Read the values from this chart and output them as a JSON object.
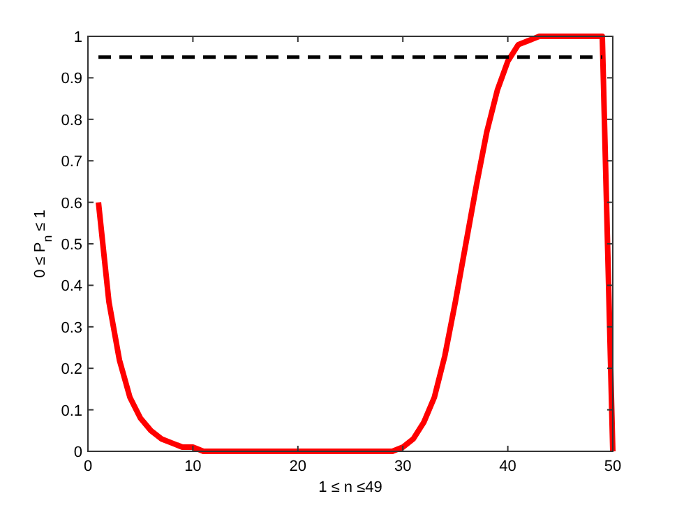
{
  "chart_data": {
    "type": "line",
    "xlabel": "1 ≤ n ≤49",
    "ylabel": "0 ≤ P$_{n}$ ≤ 1",
    "xlim": [
      0,
      50
    ],
    "ylim": [
      0,
      1
    ],
    "xticks": [
      0,
      10,
      20,
      30,
      40,
      50
    ],
    "yticks": [
      0,
      0.1,
      0.2,
      0.3,
      0.4,
      0.5,
      0.6,
      0.7,
      0.8,
      0.9,
      1
    ],
    "grid": false,
    "marker": "none",
    "series": [
      {
        "color": "#ff0000",
        "x": [
          1,
          2,
          3,
          4,
          5,
          6,
          7,
          8,
          9,
          10,
          11,
          12,
          13,
          14,
          15,
          16,
          17,
          18,
          19,
          20,
          21,
          22,
          23,
          24,
          25,
          26,
          27,
          28,
          29,
          30,
          31,
          32,
          33,
          34,
          35,
          36,
          37,
          38,
          39,
          40,
          41,
          42,
          43,
          44,
          45,
          46,
          47,
          48,
          49,
          50
        ],
        "values": [
          0.6,
          0.36,
          0.22,
          0.13,
          0.08,
          0.05,
          0.03,
          0.02,
          0.01,
          0.01,
          0,
          0,
          0,
          0,
          0,
          0,
          0,
          0,
          0,
          0,
          0,
          0,
          0,
          0,
          0,
          0,
          0,
          0,
          0,
          0.01,
          0.03,
          0.07,
          0.13,
          0.23,
          0.36,
          0.5,
          0.64,
          0.77,
          0.87,
          0.94,
          0.98,
          0.99,
          1,
          1,
          1,
          1,
          1,
          1,
          1,
          0
        ],
        "line_style": "solid"
      },
      {
        "color": "#000000",
        "x": [
          1,
          49
        ],
        "values": [
          0.95,
          0.95
        ],
        "line_style": "dashed"
      }
    ]
  }
}
